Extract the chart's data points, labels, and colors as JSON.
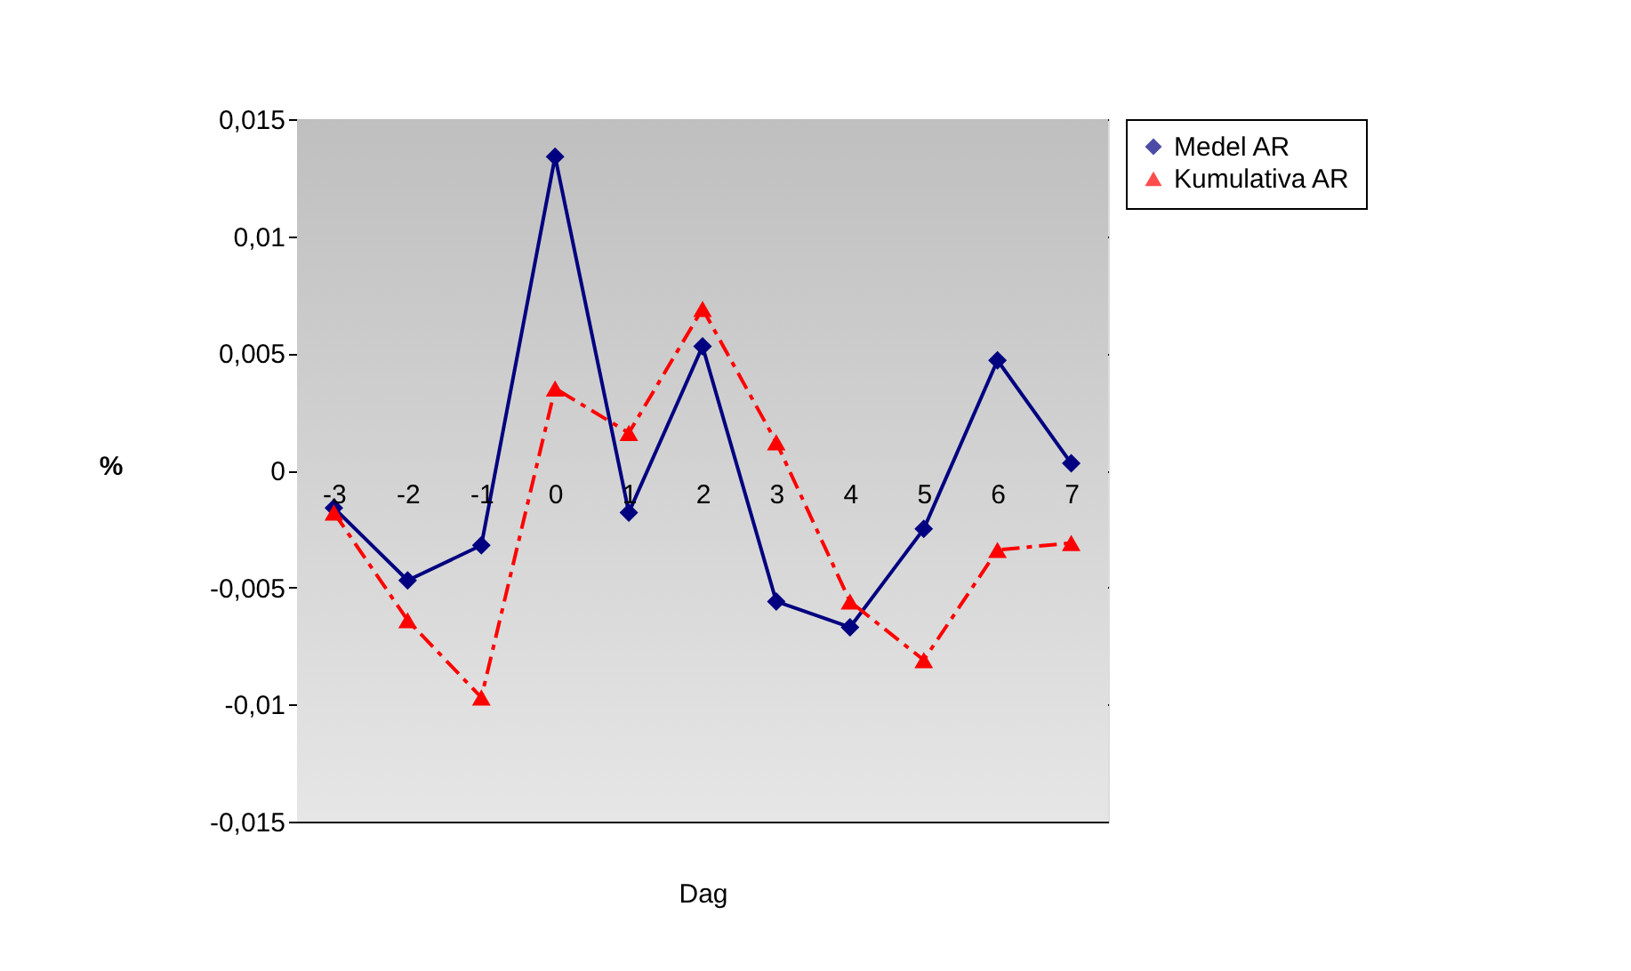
{
  "chart_data": {
    "type": "line",
    "xlabel": "Dag",
    "ylabel": "%",
    "categories": [
      "-3",
      "-2",
      "-1",
      "0",
      "1",
      "2",
      "3",
      "4",
      "5",
      "6",
      "7"
    ],
    "series": [
      {
        "name": "Medel AR",
        "color": "#000080",
        "marker": "diamond",
        "line_style": "solid",
        "values": [
          -0.0016,
          -0.0047,
          -0.0032,
          0.0134,
          -0.0018,
          0.0053,
          -0.0056,
          -0.0067,
          -0.0025,
          0.0047,
          0.0003
        ]
      },
      {
        "name": "Kumulativa AR",
        "color": "#ff0000",
        "marker": "triangle",
        "line_style": "dashdot",
        "values": [
          -0.0018,
          -0.0064,
          -0.0097,
          0.0035,
          0.0016,
          0.0069,
          0.0012,
          -0.0056,
          -0.0081,
          -0.0034,
          -0.0031
        ]
      }
    ],
    "ylim": [
      -0.015,
      0.015
    ],
    "yticks": [
      {
        "value": -0.015,
        "label": "-0,015"
      },
      {
        "value": -0.01,
        "label": "-0,01"
      },
      {
        "value": -0.005,
        "label": "-0,005"
      },
      0,
      {
        "value": 0.005,
        "label": "0,005"
      },
      {
        "value": 0.01,
        "label": "0,01"
      },
      {
        "value": 0.015,
        "label": "0,015"
      }
    ],
    "grid": "y",
    "legend": "right"
  }
}
